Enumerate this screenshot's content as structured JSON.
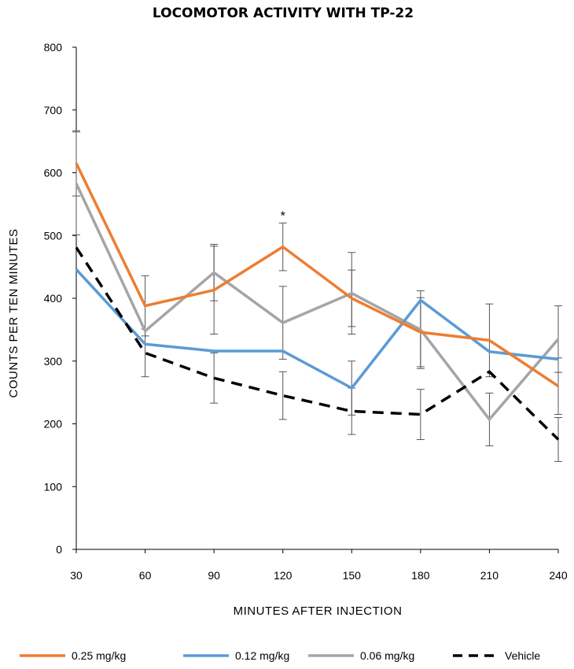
{
  "chart_data": {
    "type": "line",
    "title": "LOCOMOTOR ACTIVITY WITH TP-22",
    "xlabel": "MINUTES  AFTER  INJECTION",
    "ylabel": "COUNTS PER TEN  MINUTES",
    "x": [
      30,
      60,
      90,
      120,
      150,
      180,
      210,
      240
    ],
    "x_tick_labels": [
      "30",
      "60",
      "90",
      "120",
      "150",
      "180",
      "210",
      "240"
    ],
    "y_ticks": [
      0,
      100,
      200,
      300,
      400,
      500,
      600,
      700,
      800
    ],
    "y_tick_labels": [
      "0",
      "100",
      "200",
      "300",
      "400",
      "500",
      "600",
      "700",
      "800"
    ],
    "ylim": [
      0,
      800
    ],
    "grid": false,
    "legend_position": "bottom",
    "annotations": [
      {
        "text": "*",
        "x": 120,
        "y": 535
      }
    ],
    "series": [
      {
        "name": "0.25 mg/kg",
        "color": "#ED7D31",
        "dash": "solid",
        "values": [
          615,
          388,
          413,
          482,
          400,
          346,
          333,
          260
        ],
        "error": [
          52,
          48,
          70,
          38,
          45,
          55,
          58,
          45
        ]
      },
      {
        "name": "0.12 mg/kg",
        "color": "#5B9BD5",
        "dash": "solid",
        "values": [
          446,
          327,
          316,
          316,
          257,
          397,
          315,
          303
        ],
        "error": [
          0,
          0,
          0,
          0,
          43,
          0,
          0,
          0
        ]
      },
      {
        "name": "0.06 mg/kg",
        "color": "#A5A5A5",
        "dash": "solid",
        "values": [
          583,
          348,
          441,
          361,
          408,
          350,
          207,
          335
        ],
        "error": [
          82,
          0,
          45,
          58,
          65,
          62,
          42,
          53
        ]
      },
      {
        "name": "Vehicle",
        "color": "#000000",
        "dash": "dashed",
        "values": [
          481,
          313,
          273,
          245,
          220,
          215,
          283,
          175
        ],
        "error": [
          0,
          38,
          40,
          38,
          37,
          40,
          0,
          35
        ]
      }
    ]
  }
}
